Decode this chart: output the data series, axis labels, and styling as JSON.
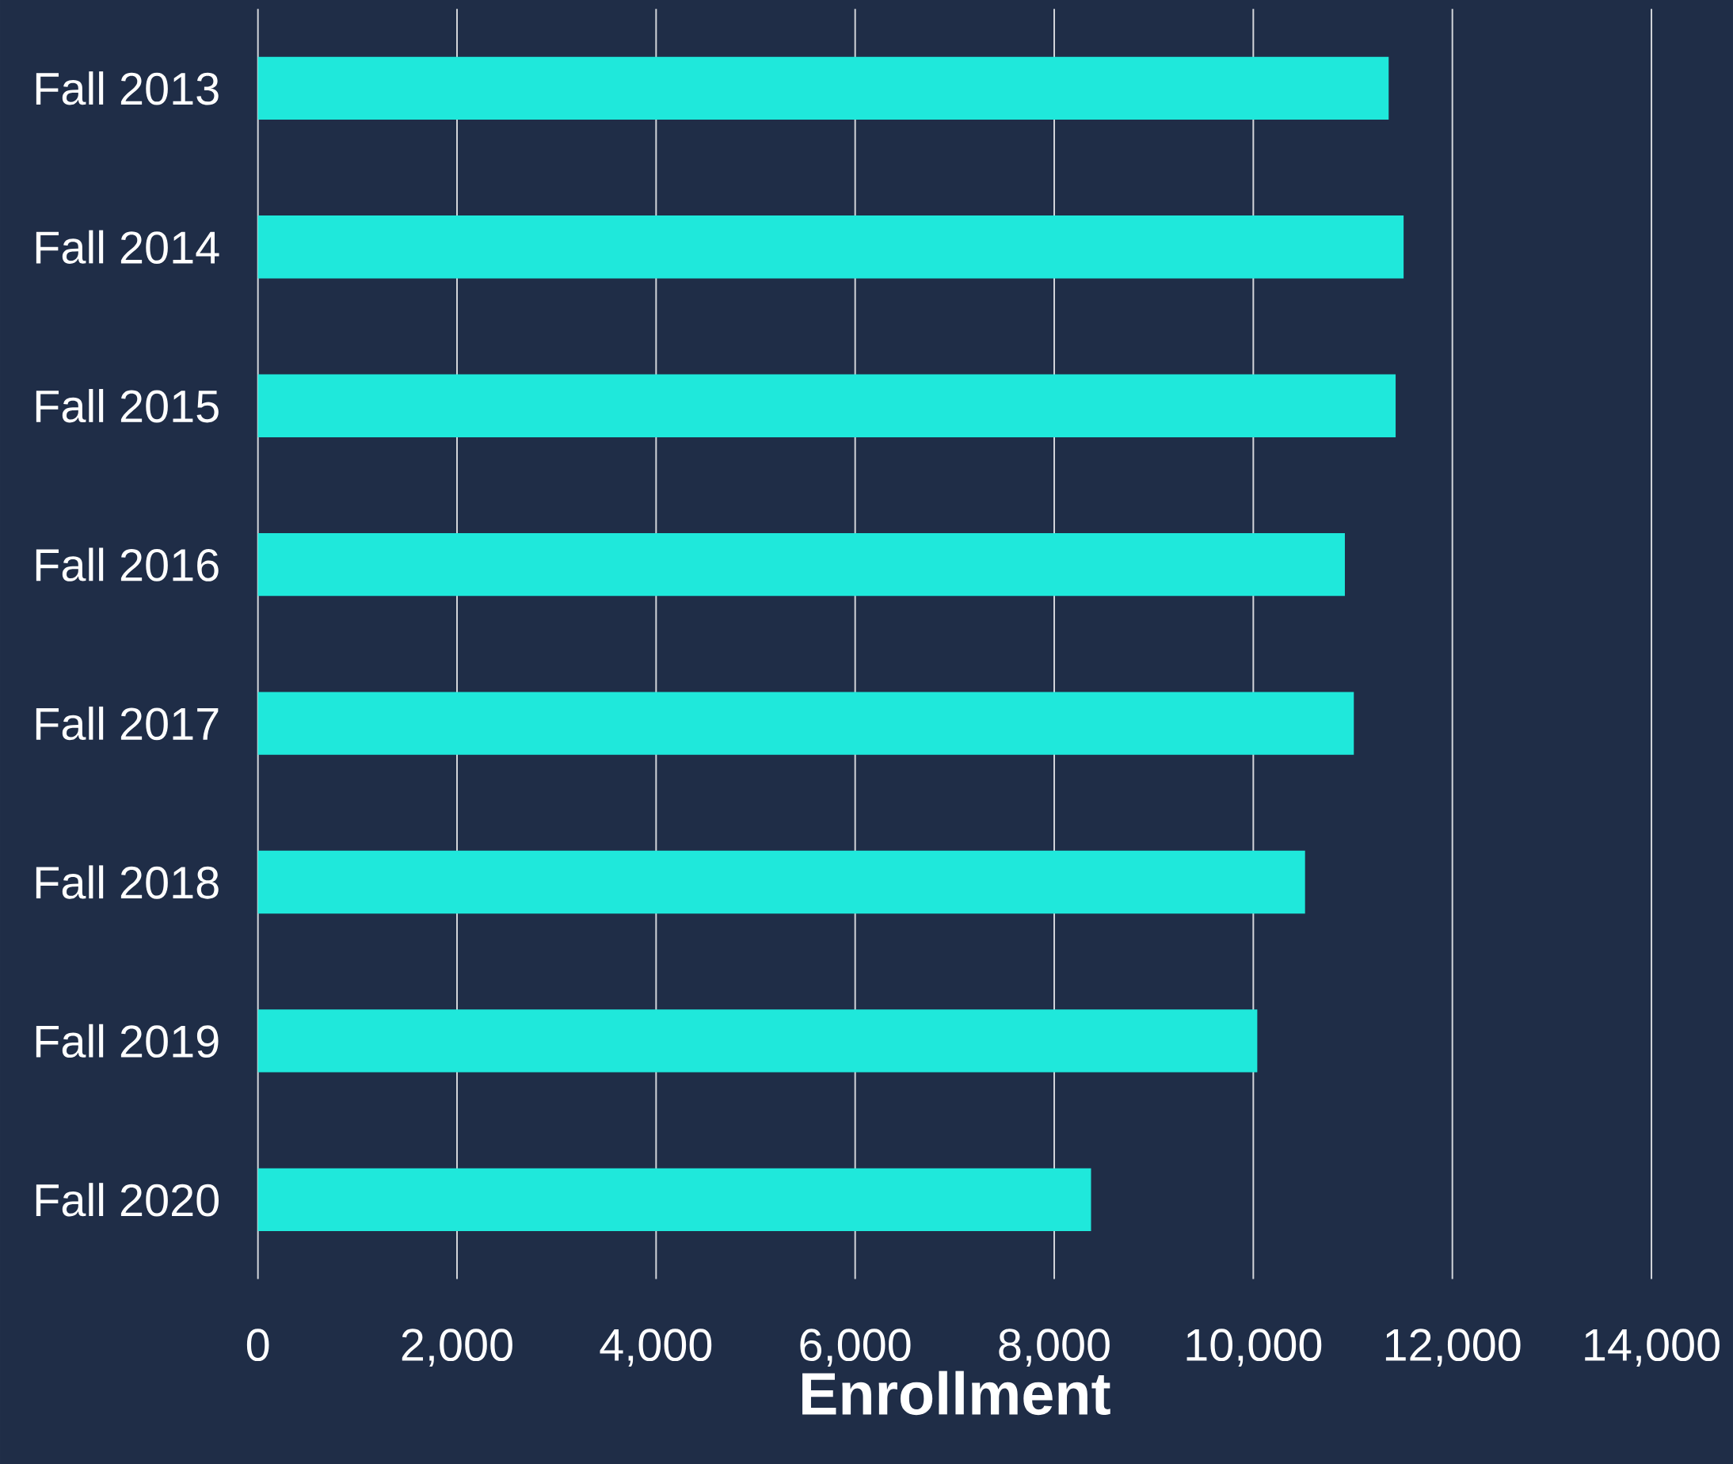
{
  "chart_data": {
    "type": "bar",
    "orientation": "horizontal",
    "xlabel": "Enrollment",
    "categories": [
      "Fall 2013",
      "Fall 2014",
      "Fall 2015",
      "Fall 2016",
      "Fall 2017",
      "Fall 2018",
      "Fall 2019",
      "Fall 2020"
    ],
    "values": [
      11360,
      11510,
      11430,
      10920,
      11010,
      10520,
      10040,
      8370
    ],
    "color": "#1fe8db",
    "xlim": [
      0,
      14000
    ],
    "xticks": [
      0,
      {
        "value": 2000,
        "label": "2,000"
      },
      {
        "value": 4000,
        "label": "4,000"
      },
      {
        "value": 6000,
        "label": "6,000"
      },
      {
        "value": 8000,
        "label": "8,000"
      },
      {
        "value": 10000,
        "label": "10,000"
      },
      {
        "value": 12000,
        "label": "12,000"
      },
      {
        "value": 14000,
        "label": "14,000"
      }
    ],
    "grid": "x"
  }
}
